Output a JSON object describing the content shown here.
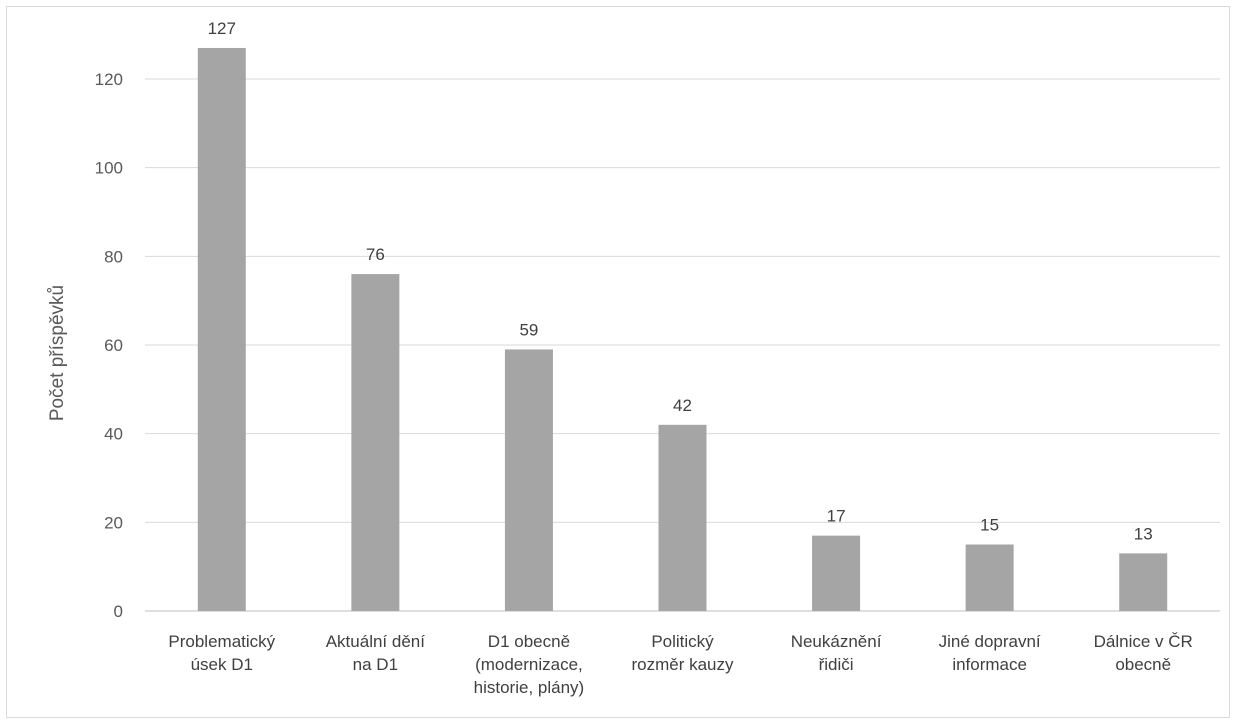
{
  "chart_data": {
    "type": "bar",
    "categories": [
      [
        "Problematický",
        "úsek D1"
      ],
      [
        "Aktuální dění",
        "na D1"
      ],
      [
        "D1 obecně",
        "(modernizace,",
        "historie, plány)"
      ],
      [
        "Politický",
        "rozměr kauzy"
      ],
      [
        "Neukáznění",
        "řidiči"
      ],
      [
        "Jiné dopravní",
        "informace"
      ],
      [
        "Dálnice v ČR",
        "obecně"
      ]
    ],
    "values": [
      127,
      76,
      59,
      42,
      17,
      15,
      13
    ],
    "title": "",
    "xlabel": "",
    "ylabel": "Počet příspěvků",
    "ylim": [
      0,
      120
    ],
    "yticks": [
      0,
      20,
      40,
      60,
      80,
      100,
      120
    ],
    "grid": true,
    "legend": "none",
    "data_labels": true,
    "colors": {
      "bar": "#a5a5a5",
      "grid": "#d9d9d9",
      "axis": "#bfbfbf",
      "text": "#404040",
      "tick_text": "#595959"
    }
  }
}
